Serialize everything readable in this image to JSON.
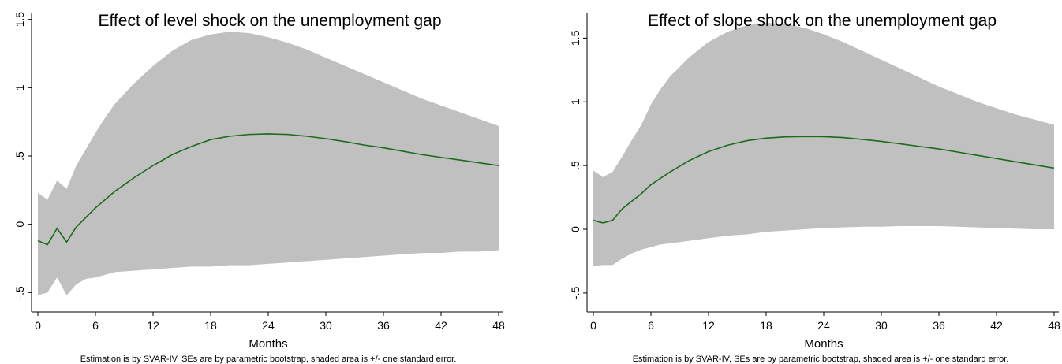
{
  "chart_data": [
    {
      "type": "area",
      "title": "Effect of level shock on the unemployment gap",
      "xlabel": "Months",
      "ylabel": "",
      "note": "Estimation is by SVAR-IV, SEs are by parametric bootstrap, shaded area is +/- one standard error.",
      "xlim": [
        0,
        48
      ],
      "ylim": [
        -0.55,
        1.55
      ],
      "xticks": [
        0,
        6,
        12,
        18,
        24,
        30,
        36,
        42,
        48
      ],
      "xtick_labels": [
        "0",
        "6",
        "12",
        "18",
        "24",
        "30",
        "36",
        "42",
        "48"
      ],
      "yticks": [
        -0.5,
        0,
        0.5,
        1,
        1.5
      ],
      "ytick_labels": [
        "-.5",
        "0",
        ".5",
        "1",
        "1.5"
      ],
      "grid": false,
      "band_color": "#c0c0c0",
      "line_color": "#1a6b1a",
      "series": [
        {
          "x": [
            0,
            1,
            2,
            3,
            4,
            5,
            6,
            7,
            8,
            10,
            12,
            14,
            16,
            18,
            20,
            22,
            24,
            26,
            28,
            30,
            32,
            34,
            36,
            38,
            40,
            42,
            44,
            46,
            48
          ],
          "upper": [
            0.23,
            0.18,
            0.32,
            0.26,
            0.43,
            0.55,
            0.67,
            0.78,
            0.88,
            1.03,
            1.16,
            1.27,
            1.35,
            1.39,
            1.41,
            1.4,
            1.37,
            1.33,
            1.28,
            1.22,
            1.16,
            1.1,
            1.04,
            0.98,
            0.92,
            0.87,
            0.82,
            0.77,
            0.72
          ],
          "lower": [
            -0.52,
            -0.5,
            -0.39,
            -0.52,
            -0.44,
            -0.4,
            -0.39,
            -0.37,
            -0.35,
            -0.34,
            -0.33,
            -0.32,
            -0.31,
            -0.31,
            -0.3,
            -0.3,
            -0.29,
            -0.28,
            -0.27,
            -0.26,
            -0.25,
            -0.24,
            -0.23,
            -0.22,
            -0.21,
            -0.21,
            -0.2,
            -0.2,
            -0.19
          ],
          "irf": [
            -0.12,
            -0.15,
            -0.03,
            -0.13,
            -0.02,
            0.05,
            0.12,
            0.18,
            0.24,
            0.34,
            0.43,
            0.51,
            0.57,
            0.62,
            0.645,
            0.658,
            0.662,
            0.658,
            0.645,
            0.627,
            0.605,
            0.58,
            0.56,
            0.535,
            0.51,
            0.49,
            0.47,
            0.45,
            0.43
          ]
        }
      ]
    },
    {
      "type": "area",
      "title": "Effect of slope shock on the unemployment gap",
      "xlabel": "Months",
      "ylabel": "",
      "note": "Estimation is by SVAR-IV, SEs are by parametric bootstrap, shaded area is +/- one standard error.",
      "xlim": [
        0,
        48
      ],
      "ylim": [
        -0.55,
        1.7
      ],
      "xticks": [
        0,
        6,
        12,
        18,
        24,
        30,
        36,
        42,
        48
      ],
      "xtick_labels": [
        "0",
        "6",
        "12",
        "18",
        "24",
        "30",
        "36",
        "42",
        "48"
      ],
      "yticks": [
        -0.5,
        0,
        0.5,
        1,
        1.5
      ],
      "ytick_labels": [
        "-.5",
        "0",
        ".5",
        "1",
        "1.5"
      ],
      "grid": false,
      "band_color": "#c0c0c0",
      "line_color": "#1a6b1a",
      "series": [
        {
          "x": [
            0,
            1,
            2,
            3,
            4,
            5,
            6,
            7,
            8,
            10,
            12,
            14,
            16,
            18,
            20,
            22,
            24,
            26,
            28,
            30,
            32,
            34,
            36,
            38,
            40,
            42,
            44,
            46,
            48
          ],
          "upper": [
            0.46,
            0.41,
            0.45,
            0.57,
            0.7,
            0.82,
            0.98,
            1.1,
            1.2,
            1.35,
            1.47,
            1.55,
            1.6,
            1.62,
            1.61,
            1.58,
            1.53,
            1.47,
            1.4,
            1.33,
            1.26,
            1.19,
            1.12,
            1.06,
            1.0,
            0.95,
            0.9,
            0.86,
            0.82
          ],
          "lower": [
            -0.29,
            -0.28,
            -0.28,
            -0.23,
            -0.19,
            -0.16,
            -0.14,
            -0.12,
            -0.11,
            -0.09,
            -0.07,
            -0.05,
            -0.04,
            -0.02,
            -0.01,
            0.0,
            0.01,
            0.015,
            0.02,
            0.02,
            0.025,
            0.025,
            0.025,
            0.02,
            0.015,
            0.01,
            0.005,
            0.0,
            0.0
          ],
          "irf": [
            0.07,
            0.05,
            0.07,
            0.16,
            0.22,
            0.28,
            0.35,
            0.4,
            0.45,
            0.54,
            0.61,
            0.66,
            0.695,
            0.715,
            0.725,
            0.728,
            0.727,
            0.72,
            0.705,
            0.69,
            0.67,
            0.65,
            0.63,
            0.605,
            0.58,
            0.555,
            0.53,
            0.505,
            0.48
          ]
        }
      ]
    }
  ]
}
